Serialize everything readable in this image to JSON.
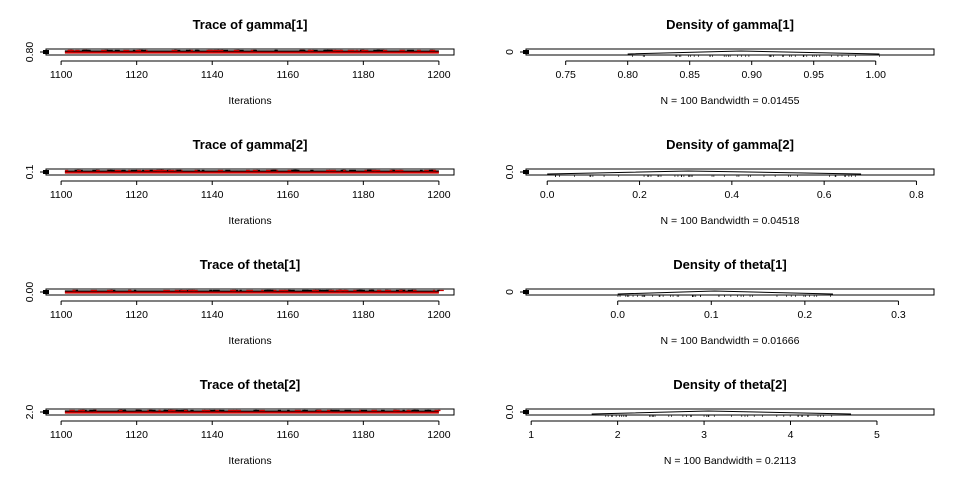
{
  "chart_data": [
    {
      "type": "line",
      "title": "Trace of gamma[1]",
      "xlabel": "Iterations",
      "ylabel": "",
      "xlim": [
        1096,
        1204
      ],
      "xticks": [
        "1100",
        "1120",
        "1140",
        "1160",
        "1180",
        "1200"
      ],
      "yticks": [
        "0.80"
      ],
      "series": [
        {
          "color": "#000000",
          "values": [
            1101,
            1200
          ]
        },
        {
          "color": "#cc0000",
          "values": [
            1101,
            1200
          ]
        }
      ]
    },
    {
      "type": "area",
      "title": "Density of gamma[1]",
      "xlabel": "N = 100   Bandwidth = 0.01455",
      "ylabel": "",
      "xlim": [
        0.718,
        1.047
      ],
      "xticks": [
        "0.75",
        "0.80",
        "0.85",
        "0.90",
        "0.95",
        "1.00"
      ],
      "yticks": [
        "0"
      ],
      "density_range": [
        0.8,
        1.003
      ]
    },
    {
      "type": "line",
      "title": "Trace of gamma[2]",
      "xlabel": "Iterations",
      "ylabel": "",
      "xlim": [
        1096,
        1204
      ],
      "xticks": [
        "1100",
        "1120",
        "1140",
        "1160",
        "1180",
        "1200"
      ],
      "yticks": [
        "0.1"
      ],
      "series": [
        {
          "color": "#000000",
          "values": [
            1101,
            1200
          ]
        },
        {
          "color": "#cc0000",
          "values": [
            1101,
            1200
          ]
        }
      ]
    },
    {
      "type": "area",
      "title": "Density of gamma[2]",
      "xlabel": "N = 100   Bandwidth = 0.04518",
      "ylabel": "",
      "xlim": [
        -0.046,
        0.838
      ],
      "xticks": [
        "0.0",
        "0.2",
        "0.4",
        "0.6",
        "0.8"
      ],
      "yticks": [
        "0.0"
      ],
      "density_range": [
        0.0,
        0.68
      ]
    },
    {
      "type": "line",
      "title": "Trace of theta[1]",
      "xlabel": "Iterations",
      "ylabel": "",
      "xlim": [
        1096,
        1204
      ],
      "xticks": [
        "1100",
        "1120",
        "1140",
        "1160",
        "1180",
        "1200"
      ],
      "yticks": [
        "0.00"
      ],
      "series": [
        {
          "color": "#000000",
          "values": [
            1101,
            1200
          ]
        },
        {
          "color": "#cc0000",
          "values": [
            1101,
            1200
          ]
        }
      ]
    },
    {
      "type": "area",
      "title": "Density of theta[1]",
      "xlabel": "N = 100   Bandwidth = 0.01666",
      "ylabel": "",
      "xlim": [
        -0.098,
        0.338
      ],
      "xticks": [
        "0.0",
        "0.1",
        "0.2",
        "0.3"
      ],
      "yticks": [
        "0"
      ],
      "density_range": [
        0.0,
        0.23
      ]
    },
    {
      "type": "line",
      "title": "Trace of theta[2]",
      "xlabel": "Iterations",
      "ylabel": "",
      "xlim": [
        1096,
        1204
      ],
      "xticks": [
        "1100",
        "1120",
        "1140",
        "1160",
        "1180",
        "1200"
      ],
      "yticks": [
        "2.0"
      ],
      "series": [
        {
          "color": "#000000",
          "values": [
            1101,
            1200
          ]
        },
        {
          "color": "#cc0000",
          "values": [
            1101,
            1200
          ]
        }
      ]
    },
    {
      "type": "area",
      "title": "Density of theta[2]",
      "xlabel": "N = 100   Bandwidth = 0.2113",
      "ylabel": "",
      "xlim": [
        0.94,
        5.66
      ],
      "xticks": [
        "1",
        "2",
        "3",
        "4",
        "5"
      ],
      "yticks": [
        "0.0"
      ],
      "density_range": [
        1.7,
        4.7
      ]
    }
  ]
}
